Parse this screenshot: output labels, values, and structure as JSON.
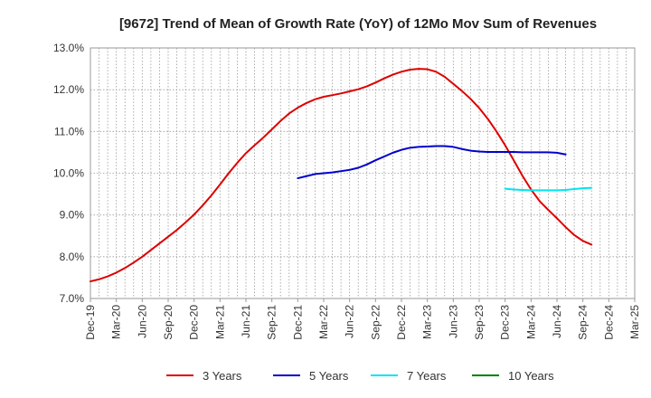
{
  "chart_data": {
    "type": "line",
    "title": "[9672]  Trend of Mean of Growth Rate (YoY) of 12Mo Mov Sum of Revenues",
    "xlabel": "",
    "ylabel": "",
    "ylim": [
      7.0,
      13.0
    ],
    "y_ticks": [
      7.0,
      8.0,
      9.0,
      10.0,
      11.0,
      12.0,
      13.0
    ],
    "y_tick_format": "percent_1dp",
    "x_ticks": [
      "Dec-19",
      "Mar-20",
      "Jun-20",
      "Sep-20",
      "Dec-20",
      "Mar-21",
      "Jun-21",
      "Sep-21",
      "Dec-21",
      "Mar-22",
      "Jun-22",
      "Sep-22",
      "Dec-22",
      "Mar-23",
      "Jun-23",
      "Sep-23",
      "Dec-23",
      "Mar-24",
      "Jun-24",
      "Sep-24",
      "Dec-24",
      "Mar-25"
    ],
    "grid": true,
    "legend_position": "bottom",
    "series": [
      {
        "name": "3 Years",
        "color": "#dd0000",
        "start_index": 0,
        "values": [
          7.41,
          7.46,
          7.53,
          7.62,
          7.73,
          7.86,
          8.0,
          8.16,
          8.32,
          8.48,
          8.64,
          8.82,
          9.01,
          9.23,
          9.47,
          9.73,
          10.0,
          10.25,
          10.48,
          10.67,
          10.85,
          11.05,
          11.25,
          11.43,
          11.57,
          11.68,
          11.77,
          11.83,
          11.87,
          11.91,
          11.96,
          12.01,
          12.08,
          12.17,
          12.27,
          12.36,
          12.43,
          12.48,
          12.5,
          12.49,
          12.43,
          12.31,
          12.14,
          11.97,
          11.78,
          11.56,
          11.3,
          11.0,
          10.67,
          10.31,
          9.94,
          9.61,
          9.33,
          9.12,
          8.92,
          8.71,
          8.52,
          8.38,
          8.29
        ]
      },
      {
        "name": "5 Years",
        "color": "#0000cc",
        "start_index": 24,
        "values": [
          9.88,
          9.93,
          9.98,
          10.0,
          10.02,
          10.05,
          10.08,
          10.13,
          10.21,
          10.31,
          10.4,
          10.49,
          10.56,
          10.61,
          10.63,
          10.64,
          10.65,
          10.65,
          10.63,
          10.58,
          10.54,
          10.52,
          10.51,
          10.51,
          10.51,
          10.51,
          10.5,
          10.5,
          10.5,
          10.5,
          10.49,
          10.45
        ]
      },
      {
        "name": "7 Years",
        "color": "#00e5ee",
        "start_index": 48,
        "values": [
          9.63,
          9.61,
          9.6,
          9.59,
          9.59,
          9.59,
          9.59,
          9.6,
          9.62,
          9.64,
          9.65
        ]
      },
      {
        "name": "10 Years",
        "color": "#008000",
        "start_index": 0,
        "values": []
      }
    ]
  }
}
